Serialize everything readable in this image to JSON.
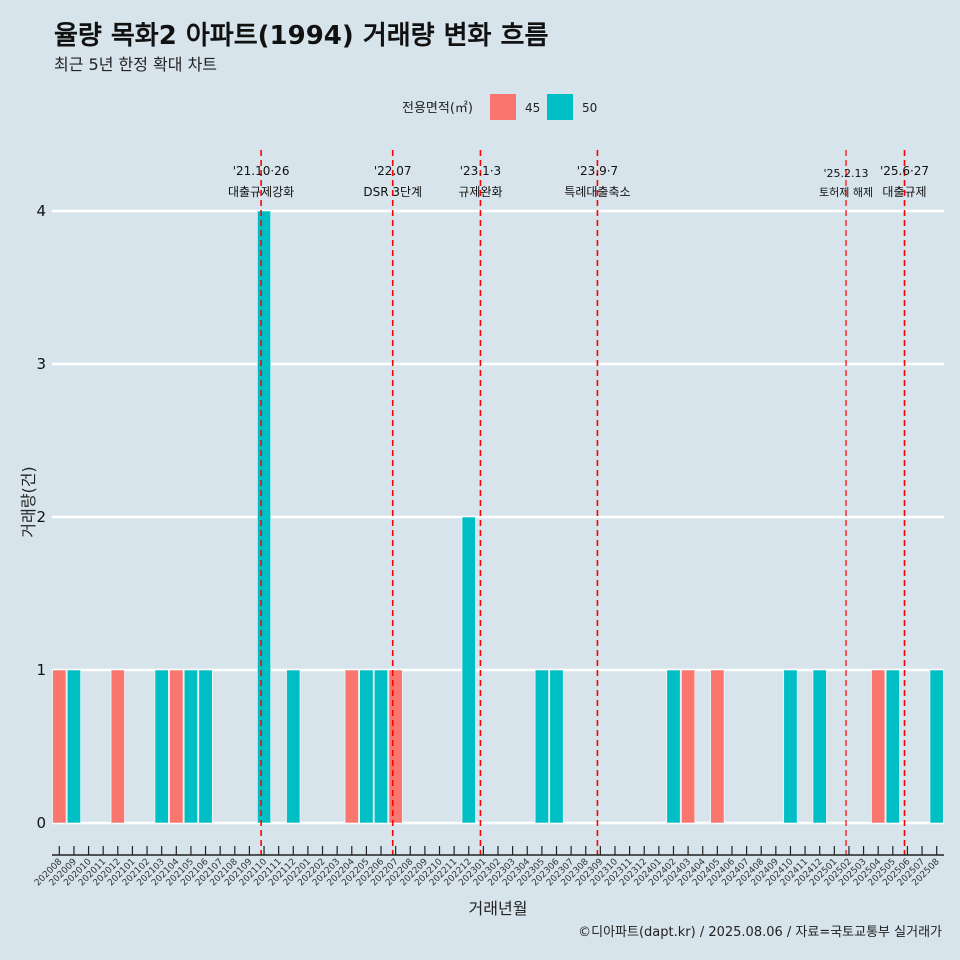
{
  "chart_data": {
    "type": "bar",
    "title": "율량 목화2 아파트(1994) 거래량 변화 흐름",
    "subtitle": "최근 5년 한정 확대 차트",
    "xlabel": "거래년월",
    "ylabel": "거래량(건)",
    "ylim": [
      0,
      4
    ],
    "yticks": [
      0,
      1,
      2,
      3,
      4
    ],
    "grid": "horizontal",
    "legend": {
      "title": "전용면적(㎡)",
      "placement": "top",
      "entries": [
        {
          "label": "45",
          "color": "#f8766d"
        },
        {
          "label": "50",
          "color": "#00bfc4"
        }
      ]
    },
    "categories": [
      "202008",
      "202009",
      "202010",
      "202011",
      "202012",
      "202101",
      "202102",
      "202103",
      "202104",
      "202105",
      "202106",
      "202107",
      "202108",
      "202109",
      "202110",
      "202111",
      "202112",
      "202201",
      "202202",
      "202203",
      "202204",
      "202205",
      "202206",
      "202207",
      "202208",
      "202209",
      "202210",
      "202211",
      "202212",
      "202301",
      "202302",
      "202303",
      "202304",
      "202305",
      "202306",
      "202307",
      "202308",
      "202309",
      "202310",
      "202311",
      "202312",
      "202401",
      "202402",
      "202403",
      "202404",
      "202405",
      "202406",
      "202407",
      "202408",
      "202409",
      "202410",
      "202411",
      "202412",
      "202501",
      "202502",
      "202503",
      "202504",
      "202505",
      "202506",
      "202507",
      "202508"
    ],
    "series": [
      {
        "name": "45",
        "color": "#f8766d",
        "values": [
          1,
          0,
          0,
          0,
          1,
          0,
          0,
          0,
          1,
          0,
          0,
          0,
          0,
          0,
          0,
          0,
          0,
          0,
          0,
          0,
          1,
          0,
          0,
          1,
          0,
          0,
          0,
          0,
          0,
          0,
          0,
          0,
          0,
          0,
          0,
          0,
          0,
          0,
          0,
          0,
          0,
          0,
          0,
          1,
          0,
          1,
          0,
          0,
          0,
          0,
          0,
          0,
          0,
          0,
          0,
          0,
          1,
          0,
          0,
          0,
          0
        ]
      },
      {
        "name": "50",
        "color": "#00bfc4",
        "values": [
          0,
          1,
          0,
          0,
          0,
          0,
          0,
          1,
          0,
          1,
          1,
          0,
          0,
          0,
          4,
          0,
          1,
          0,
          0,
          0,
          0,
          1,
          1,
          0,
          0,
          0,
          0,
          0,
          2,
          0,
          0,
          0,
          0,
          1,
          1,
          0,
          0,
          0,
          0,
          0,
          0,
          0,
          1,
          0,
          0,
          0,
          0,
          0,
          0,
          0,
          1,
          0,
          1,
          0,
          0,
          0,
          0,
          1,
          0,
          0,
          1
        ]
      }
    ],
    "annotations": [
      {
        "date": "'21.10·26",
        "text": "대출규제강화",
        "x": 14.3,
        "size": "normal"
      },
      {
        "date": "'22.07",
        "text": "DSR 3단계",
        "x": 23.3,
        "size": "normal"
      },
      {
        "date": "'23.1·3",
        "text": "규제완화",
        "x": 29.3,
        "size": "normal"
      },
      {
        "date": "'23.9·7",
        "text": "특례대출축소",
        "x": 37.3,
        "size": "normal"
      },
      {
        "date": "'25.2.13",
        "text": "토허제 해제",
        "x": 54.3,
        "size": "small"
      },
      {
        "date": "'25.6·27",
        "text": "대출규제",
        "x": 58.3,
        "size": "normal"
      }
    ],
    "caption": "©디아파트(dapt.kr) / 2025.08.06 / 자료=국토교통부 실거래가"
  }
}
